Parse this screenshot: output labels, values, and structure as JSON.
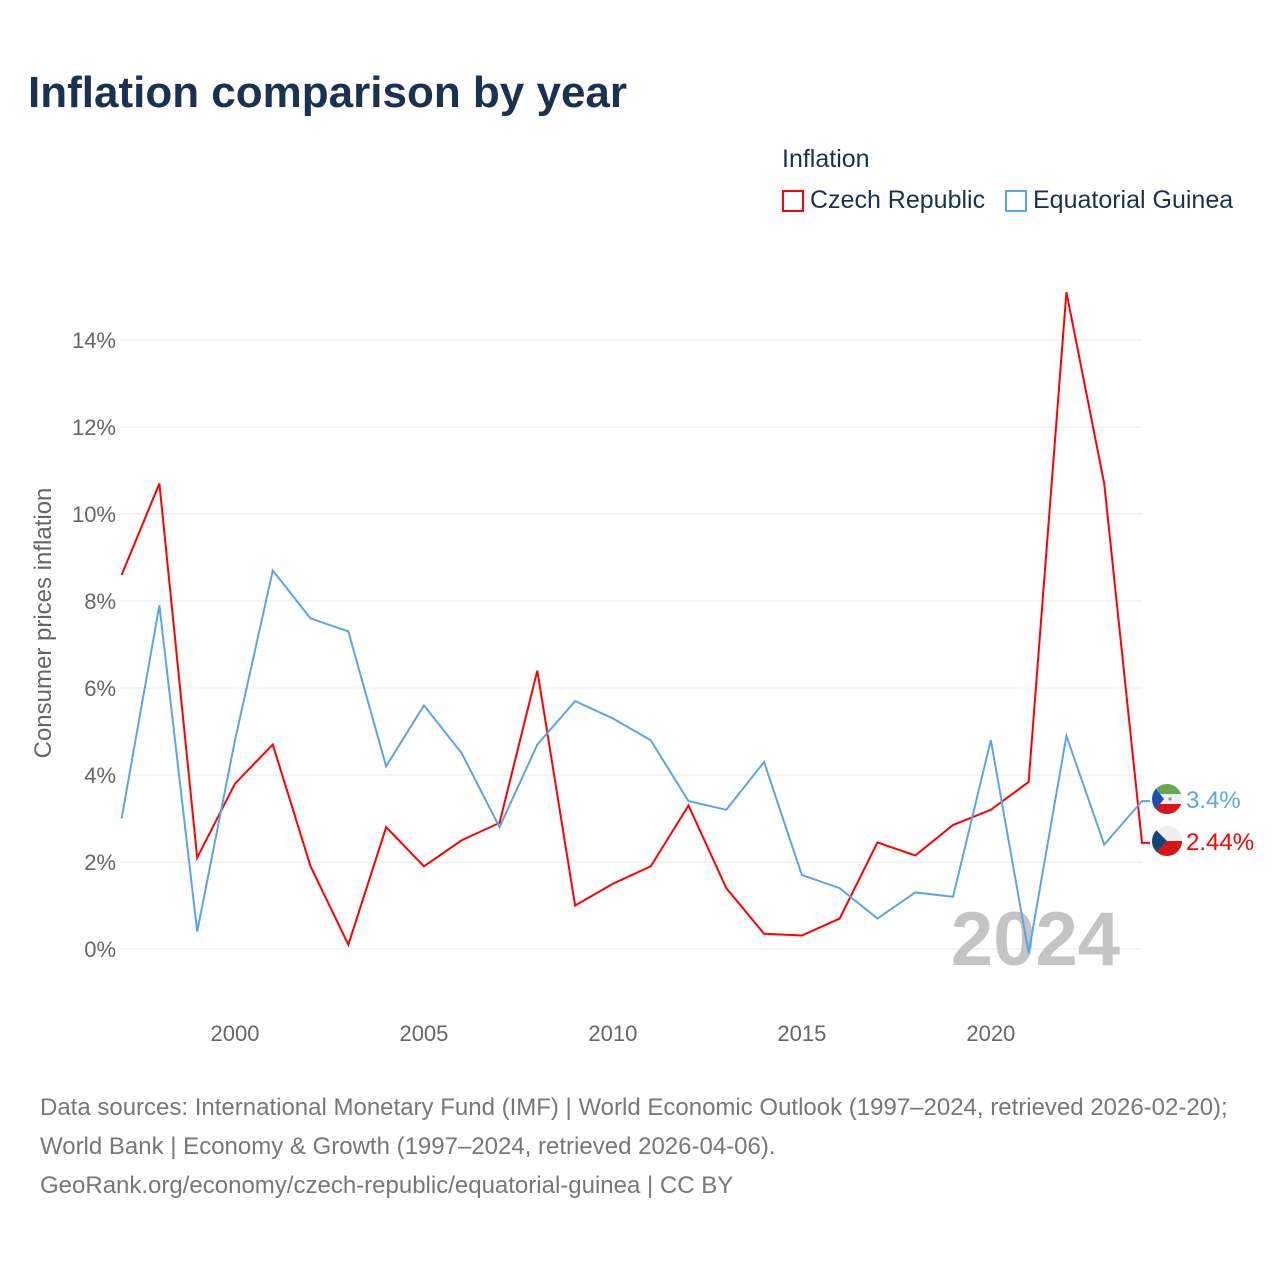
{
  "title": "Inflation comparison by year",
  "legend_title": "Inflation",
  "footer": {
    "sources": "Data sources: International Monetary Fund (IMF) | World Economic Outlook (1997–2024, retrieved 2026-02-20); World Bank | Economy & Growth (1997–2024, retrieved 2026-04-06).",
    "url": "GeoRank.org/economy/czech-republic/equatorial-guinea | CC BY"
  },
  "chart_data": {
    "type": "line",
    "title": "Inflation comparison by year",
    "ylabel": "Consumer prices inflation",
    "xlabel": "",
    "ylim": [
      -1.3,
      15.5
    ],
    "xlim": [
      1997,
      2024
    ],
    "yticks": [
      0,
      2,
      4,
      6,
      8,
      10,
      12,
      14
    ],
    "ytick_labels": [
      "0%",
      "2%",
      "4%",
      "6%",
      "8%",
      "10%",
      "12%",
      "14%"
    ],
    "xticks": [
      2000,
      2005,
      2010,
      2015,
      2020
    ],
    "xtick_labels": [
      "2000",
      "2005",
      "2010",
      "2015",
      "2020"
    ],
    "grid": true,
    "legend_position": "top-right",
    "year_watermark": "2024",
    "x": [
      1997,
      1998,
      1999,
      2000,
      2001,
      2002,
      2003,
      2004,
      2005,
      2006,
      2007,
      2008,
      2009,
      2010,
      2011,
      2012,
      2013,
      2014,
      2015,
      2016,
      2017,
      2018,
      2019,
      2020,
      2021,
      2022,
      2023,
      2024
    ],
    "series": [
      {
        "name": "Czech Republic",
        "color": "#ff0000",
        "end_label": "2.44%",
        "values": [
          8.6,
          10.7,
          2.1,
          3.8,
          4.7,
          1.9,
          0.1,
          2.8,
          1.9,
          2.5,
          2.9,
          6.4,
          1.0,
          1.5,
          1.9,
          3.3,
          1.4,
          0.35,
          0.31,
          0.7,
          2.45,
          2.15,
          2.85,
          3.2,
          3.84,
          15.1,
          10.7,
          2.44
        ]
      },
      {
        "name": "Equatorial Guinea",
        "color": "#5aa5e8",
        "end_label": "3.4%",
        "values": [
          3.0,
          7.9,
          0.4,
          4.8,
          8.7,
          7.6,
          7.3,
          4.2,
          5.6,
          4.5,
          2.8,
          4.7,
          5.7,
          5.3,
          4.8,
          3.4,
          3.2,
          4.3,
          1.7,
          1.4,
          0.7,
          1.3,
          1.2,
          4.8,
          -0.1,
          4.9,
          2.4,
          3.4
        ]
      }
    ]
  }
}
